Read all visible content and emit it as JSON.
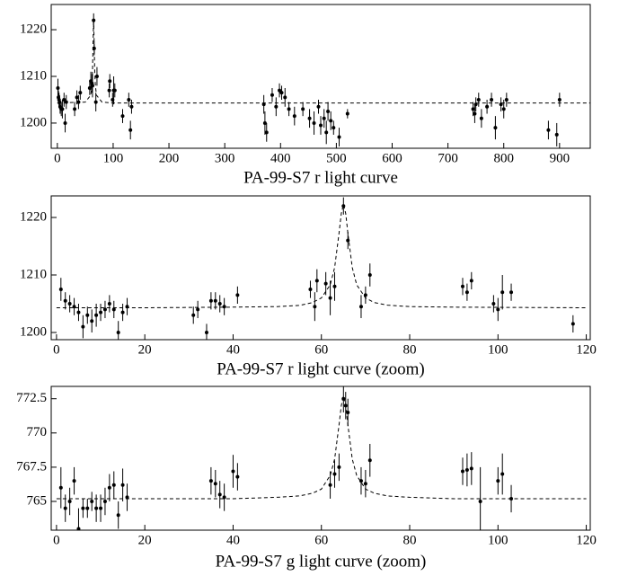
{
  "chart_data": [
    {
      "type": "scatter",
      "title": "PA-99-S7 r light curve",
      "xlim": [
        -11,
        955
      ],
      "ylim": [
        1194.6,
        1225.4
      ],
      "xticks": [
        0,
        100,
        200,
        300,
        400,
        500,
        600,
        700,
        800,
        900
      ],
      "yticks": [
        1200,
        1210,
        1220
      ],
      "series": [
        {
          "x": [
            1,
            2,
            3,
            4,
            5,
            7,
            9,
            12,
            14,
            16,
            31,
            35,
            38,
            41,
            58,
            60,
            62,
            63,
            65,
            66,
            69,
            71,
            93,
            94,
            99,
            101,
            103,
            117,
            128,
            131,
            133,
            370,
            372,
            375,
            385,
            392,
            398,
            402,
            408,
            415,
            425,
            440,
            452,
            460,
            468,
            472,
            478,
            482,
            485,
            490,
            495,
            505,
            520,
            745,
            748,
            750,
            755,
            760,
            770,
            778,
            785,
            795,
            800,
            805,
            880,
            895,
            900
          ],
          "values": [
            1207.5,
            1205.5,
            1205,
            1204.5,
            1203.5,
            1203,
            1203,
            1205,
            1200,
            1204.5,
            1203,
            1205.5,
            1204.5,
            1206.5,
            1207.5,
            1209,
            1208.5,
            1208,
            1222,
            1216,
            1204.5,
            1210,
            1207,
            1209,
            1205,
            1207,
            1207,
            1201.5,
            1205,
            1198.5,
            1203.5,
            1204,
            1200,
            1198,
            1206,
            1203.5,
            1207,
            1206.5,
            1205.5,
            1203,
            1201.5,
            1203,
            1201,
            1200,
            1203.5,
            1199.5,
            1201,
            1198,
            1202.5,
            1200.5,
            1199,
            1197,
            1202,
            1203,
            1202,
            1204,
            1205,
            1201,
            1203.5,
            1205,
            1199,
            1204,
            1203,
            1205,
            1198.5,
            1197.5,
            1205
          ],
          "errors": [
            2,
            1.5,
            1.5,
            1.5,
            1.5,
            1.5,
            2,
            1.5,
            2,
            1.5,
            1.5,
            1.5,
            1.5,
            1.5,
            1.5,
            2,
            2,
            2.5,
            1.5,
            1.5,
            2,
            2,
            1.5,
            1.5,
            1.5,
            3,
            1.5,
            1.5,
            1.5,
            2,
            1.5,
            2,
            2.5,
            2,
            1.5,
            2,
            1.5,
            1.5,
            2,
            1.5,
            2,
            1.5,
            2,
            2.5,
            1.5,
            2,
            2,
            2.5,
            2,
            2,
            1.5,
            2,
            1,
            1.5,
            2,
            1.5,
            1.5,
            2,
            1.5,
            1.5,
            2.5,
            1.5,
            2,
            1.5,
            2,
            2.5,
            1.5
          ]
        },
        {
          "x": [
            0,
            50,
            60,
            62,
            63,
            64,
            65,
            66,
            67,
            68,
            70,
            80,
            100,
            955
          ],
          "values": [
            1204.3,
            1204.5,
            1206,
            1208.3,
            1211.3,
            1217.3,
            1222.3,
            1217.3,
            1211.3,
            1208.3,
            1206,
            1204.5,
            1204.3,
            1204.3
          ]
        }
      ]
    },
    {
      "type": "scatter",
      "title": "PA-99-S7 r light curve (zoom)",
      "xlim": [
        -1.2,
        120.9
      ],
      "ylim": [
        1198.75,
        1223.75
      ],
      "xticks": [
        0,
        20,
        40,
        60,
        80,
        100,
        120
      ],
      "yticks": [
        1200,
        1210,
        1220
      ],
      "series": [
        {
          "x": [
            1,
            2,
            3,
            4,
            5,
            6,
            7,
            8,
            9,
            10,
            11,
            12,
            13,
            14,
            15,
            16,
            31,
            32,
            34,
            35,
            36,
            37,
            38,
            41,
            57.5,
            58.5,
            59,
            61,
            62,
            63,
            65,
            66,
            69,
            70,
            71,
            92,
            93,
            94,
            99,
            100,
            101,
            103,
            117
          ],
          "values": [
            1207.5,
            1205.5,
            1205,
            1204.5,
            1203.5,
            1201,
            1203,
            1202,
            1203,
            1203.5,
            1204,
            1205,
            1204,
            1200,
            1203.5,
            1204.5,
            1203,
            1204,
            1200,
            1205.5,
            1205.5,
            1205,
            1204.5,
            1206.5,
            1207.5,
            1204.5,
            1209,
            1208.5,
            1206,
            1208,
            1222,
            1216,
            1204.5,
            1206.5,
            1210,
            1208,
            1207,
            1209,
            1205,
            1204,
            1207,
            1207,
            1201.5
          ],
          "errors": [
            2,
            1.5,
            1.5,
            1.5,
            1.5,
            2,
            1.5,
            2,
            2,
            1.5,
            1.5,
            1.5,
            1.5,
            2,
            1.5,
            1.5,
            1.5,
            1.5,
            1.5,
            1.5,
            1.5,
            1.5,
            1.5,
            1.5,
            1.5,
            2.5,
            2,
            2,
            3,
            2.5,
            1.5,
            1.5,
            2,
            1.5,
            2,
            1.5,
            1.5,
            1.5,
            1.5,
            2,
            3,
            1.5,
            1.5
          ]
        },
        {
          "x": [
            0,
            20,
            40,
            50,
            55,
            58,
            60,
            62,
            63,
            64,
            64.5,
            65,
            65.5,
            66,
            67,
            68,
            70,
            72,
            75,
            80,
            90,
            120
          ],
          "values": [
            1204.3,
            1204.3,
            1204.4,
            1204.5,
            1204.7,
            1205.2,
            1206,
            1208.3,
            1211.3,
            1217.3,
            1220.7,
            1222.3,
            1220.7,
            1217.3,
            1211.3,
            1208.3,
            1206,
            1205.2,
            1204.75,
            1204.5,
            1204.4,
            1204.3
          ]
        }
      ]
    },
    {
      "type": "scatter",
      "title": "PA-99-S7 g light curve (zoom)",
      "xlim": [
        -1.2,
        120.9
      ],
      "ylim": [
        762.9,
        773.4
      ],
      "xticks": [
        0,
        20,
        40,
        60,
        80,
        100,
        120
      ],
      "yticks": [
        765,
        767.5,
        770,
        772.5
      ],
      "series": [
        {
          "x": [
            1,
            2,
            3,
            4,
            5,
            6,
            7,
            8,
            9,
            10,
            11,
            12,
            13,
            14,
            15,
            16,
            35,
            36,
            37,
            38,
            40,
            41,
            62,
            63,
            64,
            65,
            65.5,
            66,
            69,
            70,
            71,
            92,
            93,
            94,
            96,
            100,
            101,
            103
          ],
          "values": [
            766,
            764.5,
            765,
            766.5,
            763,
            764.5,
            764.5,
            765,
            764.5,
            764.5,
            765,
            766,
            766.2,
            764,
            766.2,
            765.3,
            766.5,
            766.3,
            765.5,
            765.3,
            767.2,
            766.8,
            766.2,
            767,
            767.5,
            772.5,
            772,
            771.5,
            766.5,
            766.3,
            768,
            767.2,
            767.3,
            767.4,
            765,
            766.5,
            767,
            765.2
          ],
          "errors": [
            1.5,
            1,
            1,
            1,
            1.5,
            0.7,
            0.7,
            0.7,
            1,
            1,
            1,
            1,
            1,
            1,
            1.2,
            1,
            1,
            1,
            1,
            1,
            1.2,
            1,
            1,
            1,
            1,
            1,
            1,
            1,
            1,
            1,
            1.2,
            1,
            1.2,
            1.2,
            2.5,
            1,
            1.5,
            1
          ]
        },
        {
          "x": [
            0,
            40,
            50,
            55,
            58,
            60,
            62,
            63,
            64,
            64.5,
            65,
            65.5,
            66,
            67,
            68,
            70,
            72,
            75,
            80,
            90,
            120
          ],
          "values": [
            765.2,
            765.2,
            765.3,
            765.4,
            765.6,
            765.9,
            766.9,
            768.1,
            770.6,
            772,
            772.7,
            772,
            770.6,
            768.1,
            766.9,
            765.9,
            765.6,
            765.4,
            765.3,
            765.2,
            765.2
          ]
        }
      ]
    }
  ]
}
